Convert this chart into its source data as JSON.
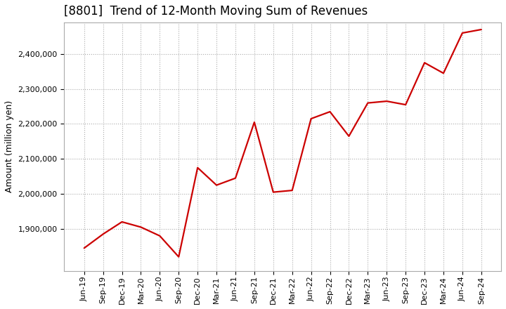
{
  "title": "[8801]  Trend of 12-Month Moving Sum of Revenues",
  "ylabel": "Amount (million yen)",
  "line_color": "#cc0000",
  "background_color": "#ffffff",
  "plot_bg_color": "#ffffff",
  "grid_color": "#aaaaaa",
  "x_labels": [
    "Jun-19",
    "Sep-19",
    "Dec-19",
    "Mar-20",
    "Jun-20",
    "Sep-20",
    "Dec-20",
    "Mar-21",
    "Jun-21",
    "Sep-21",
    "Dec-21",
    "Mar-22",
    "Jun-22",
    "Sep-22",
    "Dec-22",
    "Mar-23",
    "Jun-23",
    "Sep-23",
    "Dec-23",
    "Mar-24",
    "Jun-24",
    "Sep-24"
  ],
  "values": [
    1845000,
    1885000,
    1920000,
    1905000,
    1880000,
    1820000,
    2075000,
    2025000,
    2045000,
    2205000,
    2005000,
    2010000,
    2215000,
    2235000,
    2165000,
    2260000,
    2265000,
    2255000,
    2375000,
    2345000,
    2460000,
    2470000
  ],
  "ylim_min": 1780000,
  "ylim_max": 2490000,
  "yticks": [
    1900000,
    2000000,
    2100000,
    2200000,
    2300000,
    2400000
  ],
  "title_fontsize": 12,
  "label_fontsize": 9,
  "tick_fontsize": 8
}
